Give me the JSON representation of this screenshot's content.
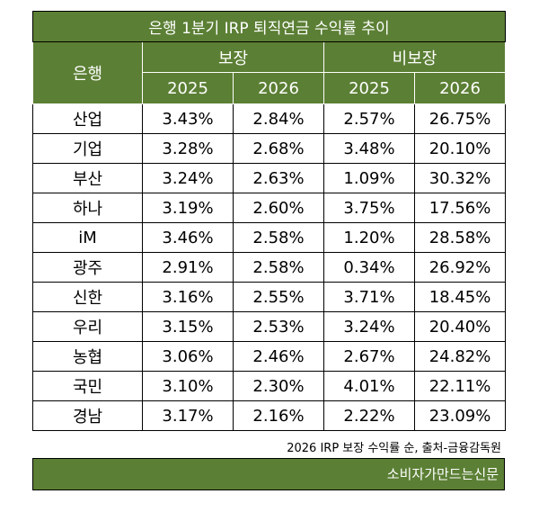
{
  "title": "은행 1분기 IRP 퇴직연금 수익률 추이",
  "headers": {
    "bank": "은행",
    "guaranteed": "보장",
    "non_guaranteed": "비보장",
    "years": [
      "2025",
      "2026",
      "2025",
      "2026"
    ]
  },
  "rows": [
    {
      "bank": "산업",
      "g2025": "3.43%",
      "g2026": "2.84%",
      "n2025": "2.57%",
      "n2026": "26.75%"
    },
    {
      "bank": "기업",
      "g2025": "3.28%",
      "g2026": "2.68%",
      "n2025": "3.48%",
      "n2026": "20.10%"
    },
    {
      "bank": "부산",
      "g2025": "3.24%",
      "g2026": "2.63%",
      "n2025": "1.09%",
      "n2026": "30.32%"
    },
    {
      "bank": "하나",
      "g2025": "3.19%",
      "g2026": "2.60%",
      "n2025": "3.75%",
      "n2026": "17.56%"
    },
    {
      "bank": "iM",
      "g2025": "3.46%",
      "g2026": "2.58%",
      "n2025": "1.20%",
      "n2026": "28.58%"
    },
    {
      "bank": "광주",
      "g2025": "2.91%",
      "g2026": "2.58%",
      "n2025": "0.34%",
      "n2026": "26.92%"
    },
    {
      "bank": "신한",
      "g2025": "3.16%",
      "g2026": "2.55%",
      "n2025": "3.71%",
      "n2026": "18.45%"
    },
    {
      "bank": "우리",
      "g2025": "3.15%",
      "g2026": "2.53%",
      "n2025": "3.24%",
      "n2026": "20.40%"
    },
    {
      "bank": "농협",
      "g2025": "3.06%",
      "g2026": "2.46%",
      "n2025": "2.67%",
      "n2026": "24.82%"
    },
    {
      "bank": "국민",
      "g2025": "3.10%",
      "g2026": "2.30%",
      "n2025": "4.01%",
      "n2026": "22.11%"
    },
    {
      "bank": "경남",
      "g2025": "3.17%",
      "g2026": "2.16%",
      "n2025": "2.22%",
      "n2026": "23.09%"
    }
  ],
  "note": "2026 IRP 보장 수익률 순, 출처-금융감독원",
  "footer": "소비자가만드는신문",
  "colors": {
    "header_bg": "#5b7f34",
    "header_text": "#ffffff"
  }
}
